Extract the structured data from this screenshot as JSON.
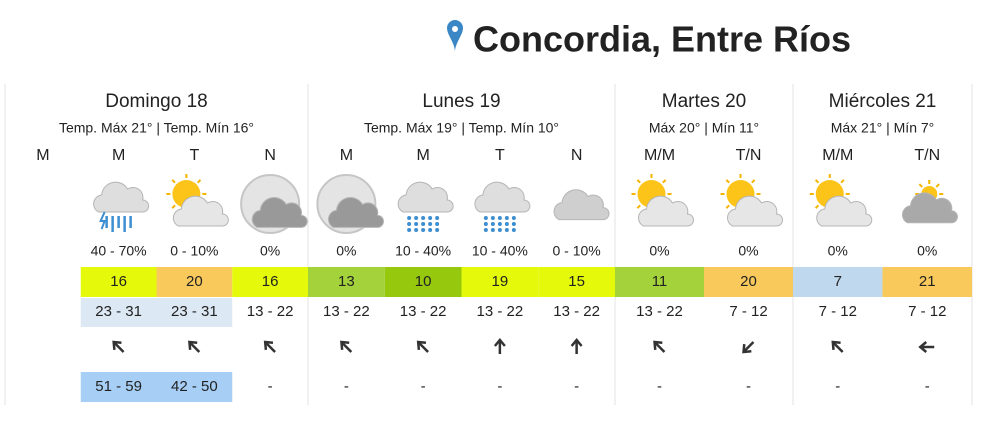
{
  "header": {
    "title": "Concordia, Entre Ríos"
  },
  "days": [
    {
      "name": "Domingo 18",
      "summary": "Temp. Máx 21° | Temp. Mín 16°",
      "periods": [
        {
          "label": "M"
        },
        {
          "label": "M",
          "precip": "40 - 70%",
          "temp": 16,
          "temp_color": "#e4fa0a",
          "wind": "23 - 31",
          "wind_color": "#dce9f5",
          "gust": "51 - 59",
          "gust_color": "#a7cff5"
        },
        {
          "label": "T",
          "precip": "0 - 10%",
          "temp": 20,
          "temp_color": "#f9c95c",
          "wind": "23 - 31",
          "wind_color": "#dce9f5",
          "gust": "42 - 50",
          "gust_color": "#a7cff5"
        },
        {
          "label": "N",
          "precip": "0%",
          "temp": 16,
          "temp_color": "#e4fa0a",
          "wind": "13 - 22",
          "gust": "-"
        }
      ]
    },
    {
      "name": "Lunes 19",
      "summary": "Temp. Máx 19° | Temp. Mín 10°",
      "periods": [
        {
          "label": "M",
          "precip": "0%",
          "temp": 13,
          "temp_color": "#a3d23a",
          "wind": "13 - 22",
          "gust": "-"
        },
        {
          "label": "M",
          "precip": "10 - 40%",
          "temp": 10,
          "temp_color": "#96c80e",
          "wind": "13 - 22",
          "gust": "-"
        },
        {
          "label": "T",
          "precip": "10 - 40%",
          "temp": 19,
          "temp_color": "#e4fa0a",
          "wind": "13 - 22",
          "gust": "-"
        },
        {
          "label": "N",
          "precip": "0 - 10%",
          "temp": 15,
          "temp_color": "#e4fa0a",
          "wind": "13 - 22",
          "gust": "-"
        }
      ]
    },
    {
      "name": "Martes 20",
      "summary": "Máx 20° | Mín 11°",
      "periods": [
        {
          "label": "M/M",
          "precip": "0%",
          "temp": 11,
          "temp_color": "#a3d23a",
          "wind": "13 - 22",
          "gust": "-"
        },
        {
          "label": "T/N",
          "precip": "0%",
          "temp": 20,
          "temp_color": "#f9c95c",
          "wind": "7 - 12",
          "gust": "-"
        }
      ]
    },
    {
      "name": "Miércoles 21",
      "summary": "Máx 21° | Mín 7°",
      "periods": [
        {
          "label": "M/M",
          "precip": "0%",
          "temp": 7,
          "temp_color": "#bfd8ee",
          "wind": "7 - 12",
          "gust": "-"
        },
        {
          "label": "T/N",
          "precip": "0%",
          "temp": 21,
          "temp_color": "#f9c95c",
          "wind": "7 - 12",
          "gust": "-"
        }
      ]
    }
  ]
}
